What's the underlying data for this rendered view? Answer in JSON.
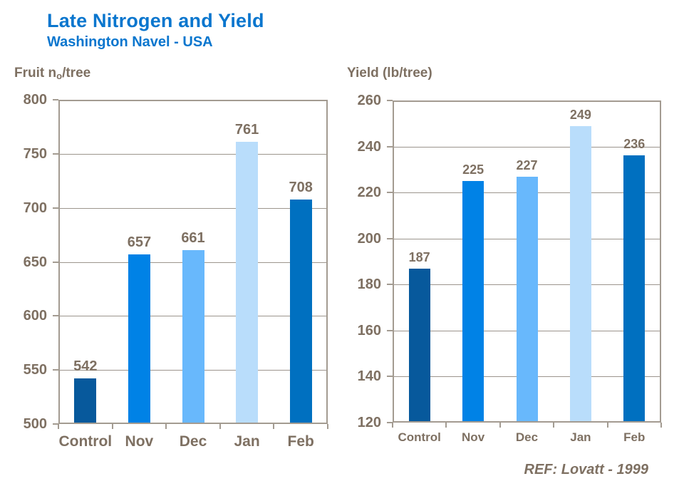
{
  "header": {
    "title": "Late Nitrogen and Yield",
    "subtitle": "Washington Navel - USA"
  },
  "footer": {
    "reference": "REF: Lovatt - 1999"
  },
  "colors": {
    "title_blue": "#0a76ce",
    "axis_text": "#7e7062",
    "gridline": "#9c958d",
    "axis_border": "#a39b91",
    "bar_control": "#07599c",
    "bar_nov": "#0082e6",
    "bar_dec": "#68b8fc",
    "bar_jan": "#b9ddfb",
    "bar_feb": "#0070c0"
  },
  "chart_data": [
    {
      "type": "bar",
      "title": "Fruit no/tree",
      "title_parts": [
        {
          "t": "Fruit n"
        },
        {
          "t": "o",
          "sub": true
        },
        {
          "t": "/tree"
        }
      ],
      "categories": [
        "Control",
        "Nov",
        "Dec",
        "Jan",
        "Feb"
      ],
      "values": [
        542,
        657,
        661,
        761,
        708
      ],
      "ylim": [
        500,
        800
      ],
      "ytick_step": 50,
      "ytick_labels": [
        "500",
        "550",
        "600",
        "650",
        "700",
        "750",
        "800"
      ],
      "bar_colors": [
        "#07599c",
        "#0082e6",
        "#68b8fc",
        "#b9ddfb",
        "#0070c0"
      ],
      "grid": true,
      "legend_position": "none"
    },
    {
      "type": "bar",
      "title": "Yield (lb/tree)",
      "title_parts": [
        {
          "t": "Yield (lb/tree)"
        }
      ],
      "categories": [
        "Control",
        "Nov",
        "Dec",
        "Jan",
        "Feb"
      ],
      "values": [
        187,
        225,
        227,
        249,
        236
      ],
      "ylim": [
        120,
        260
      ],
      "ytick_step": 20,
      "ytick_labels": [
        "120",
        "140",
        "160",
        "180",
        "200",
        "220",
        "240",
        "260"
      ],
      "bar_colors": [
        "#07599c",
        "#0082e6",
        "#68b8fc",
        "#b9ddfb",
        "#0070c0"
      ],
      "grid": true,
      "legend_position": "none"
    }
  ]
}
